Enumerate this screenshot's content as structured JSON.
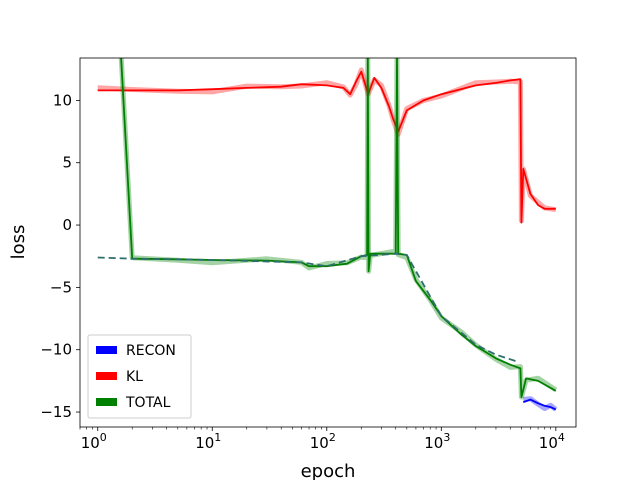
{
  "chart_data": {
    "type": "line",
    "xscale": "log",
    "xlabel": "epoch",
    "ylabel": "loss",
    "xlim": [
      0.7,
      15000
    ],
    "ylim": [
      -16.2,
      13.4
    ],
    "yticks": [
      10,
      5,
      0,
      -5,
      -10,
      -15
    ],
    "ytick_labels": [
      "10",
      "5",
      "0",
      "−5",
      "−10",
      "−15"
    ],
    "xticks": [
      1,
      10,
      100,
      1000,
      10000
    ],
    "xtick_labels": [
      {
        "base": "10",
        "exp": "0"
      },
      {
        "base": "10",
        "exp": "1"
      },
      {
        "base": "10",
        "exp": "2"
      },
      {
        "base": "10",
        "exp": "3"
      },
      {
        "base": "10",
        "exp": "4"
      }
    ],
    "grid": false,
    "legend_position": "lower-left",
    "legend": [
      {
        "name": "RECON",
        "color": "#0000ff"
      },
      {
        "name": "KL",
        "color": "#ff0000"
      },
      {
        "name": "TOTAL",
        "color": "#008000"
      }
    ],
    "series": [
      {
        "name": "RECON",
        "color": "#0000ff",
        "points": [
          [
            5200,
            -14.2
          ],
          [
            6000,
            -14.0
          ],
          [
            7000,
            -14.3
          ],
          [
            8000,
            -14.5
          ],
          [
            9000,
            -14.6
          ],
          [
            10000,
            -14.8
          ]
        ]
      },
      {
        "name": "KL",
        "color": "#ff0000",
        "points": [
          [
            1,
            10.8
          ],
          [
            2,
            10.8
          ],
          [
            5,
            10.8
          ],
          [
            10,
            10.9
          ],
          [
            20,
            11.0
          ],
          [
            40,
            11.1
          ],
          [
            60,
            11.3
          ],
          [
            100,
            11.2
          ],
          [
            140,
            11.0
          ],
          [
            160,
            10.5
          ],
          [
            180,
            11.5
          ],
          [
            200,
            12.3
          ],
          [
            230,
            10.5
          ],
          [
            260,
            11.8
          ],
          [
            300,
            11.0
          ],
          [
            350,
            9.5
          ],
          [
            380,
            8.5
          ],
          [
            420,
            7.5
          ],
          [
            500,
            9.2
          ],
          [
            700,
            10.0
          ],
          [
            1000,
            10.5
          ],
          [
            2000,
            11.2
          ],
          [
            3000,
            11.4
          ],
          [
            4000,
            11.6
          ],
          [
            4900,
            11.7
          ],
          [
            5000,
            0.2
          ],
          [
            5200,
            4.5
          ],
          [
            6000,
            2.5
          ],
          [
            7000,
            1.6
          ],
          [
            8000,
            1.3
          ],
          [
            10000,
            1.3
          ]
        ]
      },
      {
        "name": "TOTAL",
        "color": "#008000",
        "points": [
          [
            1.6,
            13.4
          ],
          [
            2,
            -2.7
          ],
          [
            5,
            -2.75
          ],
          [
            10,
            -2.8
          ],
          [
            30,
            -2.85
          ],
          [
            60,
            -3.0
          ],
          [
            70,
            -3.3
          ],
          [
            100,
            -3.3
          ],
          [
            150,
            -3.1
          ],
          [
            200,
            -2.5
          ],
          [
            225,
            -2.4
          ],
          [
            228,
            13.4
          ],
          [
            232,
            -3.7
          ],
          [
            240,
            -2.3
          ],
          [
            400,
            -2.3
          ],
          [
            410,
            13.4
          ],
          [
            420,
            -2.3
          ],
          [
            500,
            -2.4
          ],
          [
            600,
            -4.5
          ],
          [
            800,
            -6.0
          ],
          [
            1000,
            -7.3
          ],
          [
            1500,
            -8.8
          ],
          [
            2000,
            -9.7
          ],
          [
            3000,
            -10.7
          ],
          [
            4000,
            -11.2
          ],
          [
            4900,
            -11.5
          ],
          [
            5000,
            -13.8
          ],
          [
            5500,
            -12.3
          ],
          [
            7000,
            -12.5
          ],
          [
            10000,
            -13.3
          ]
        ]
      },
      {
        "name": "",
        "color": "#2e6e6e",
        "dashed": true,
        "points": [
          [
            1,
            -2.6
          ],
          [
            2,
            -2.7
          ],
          [
            5,
            -2.75
          ],
          [
            10,
            -2.8
          ],
          [
            60,
            -3.0
          ],
          [
            100,
            -3.3
          ],
          [
            200,
            -2.5
          ],
          [
            400,
            -2.3
          ],
          [
            500,
            -2.4
          ],
          [
            1000,
            -7.3
          ],
          [
            2000,
            -9.6
          ],
          [
            3000,
            -10.4
          ],
          [
            4800,
            -11.0
          ]
        ]
      }
    ]
  }
}
